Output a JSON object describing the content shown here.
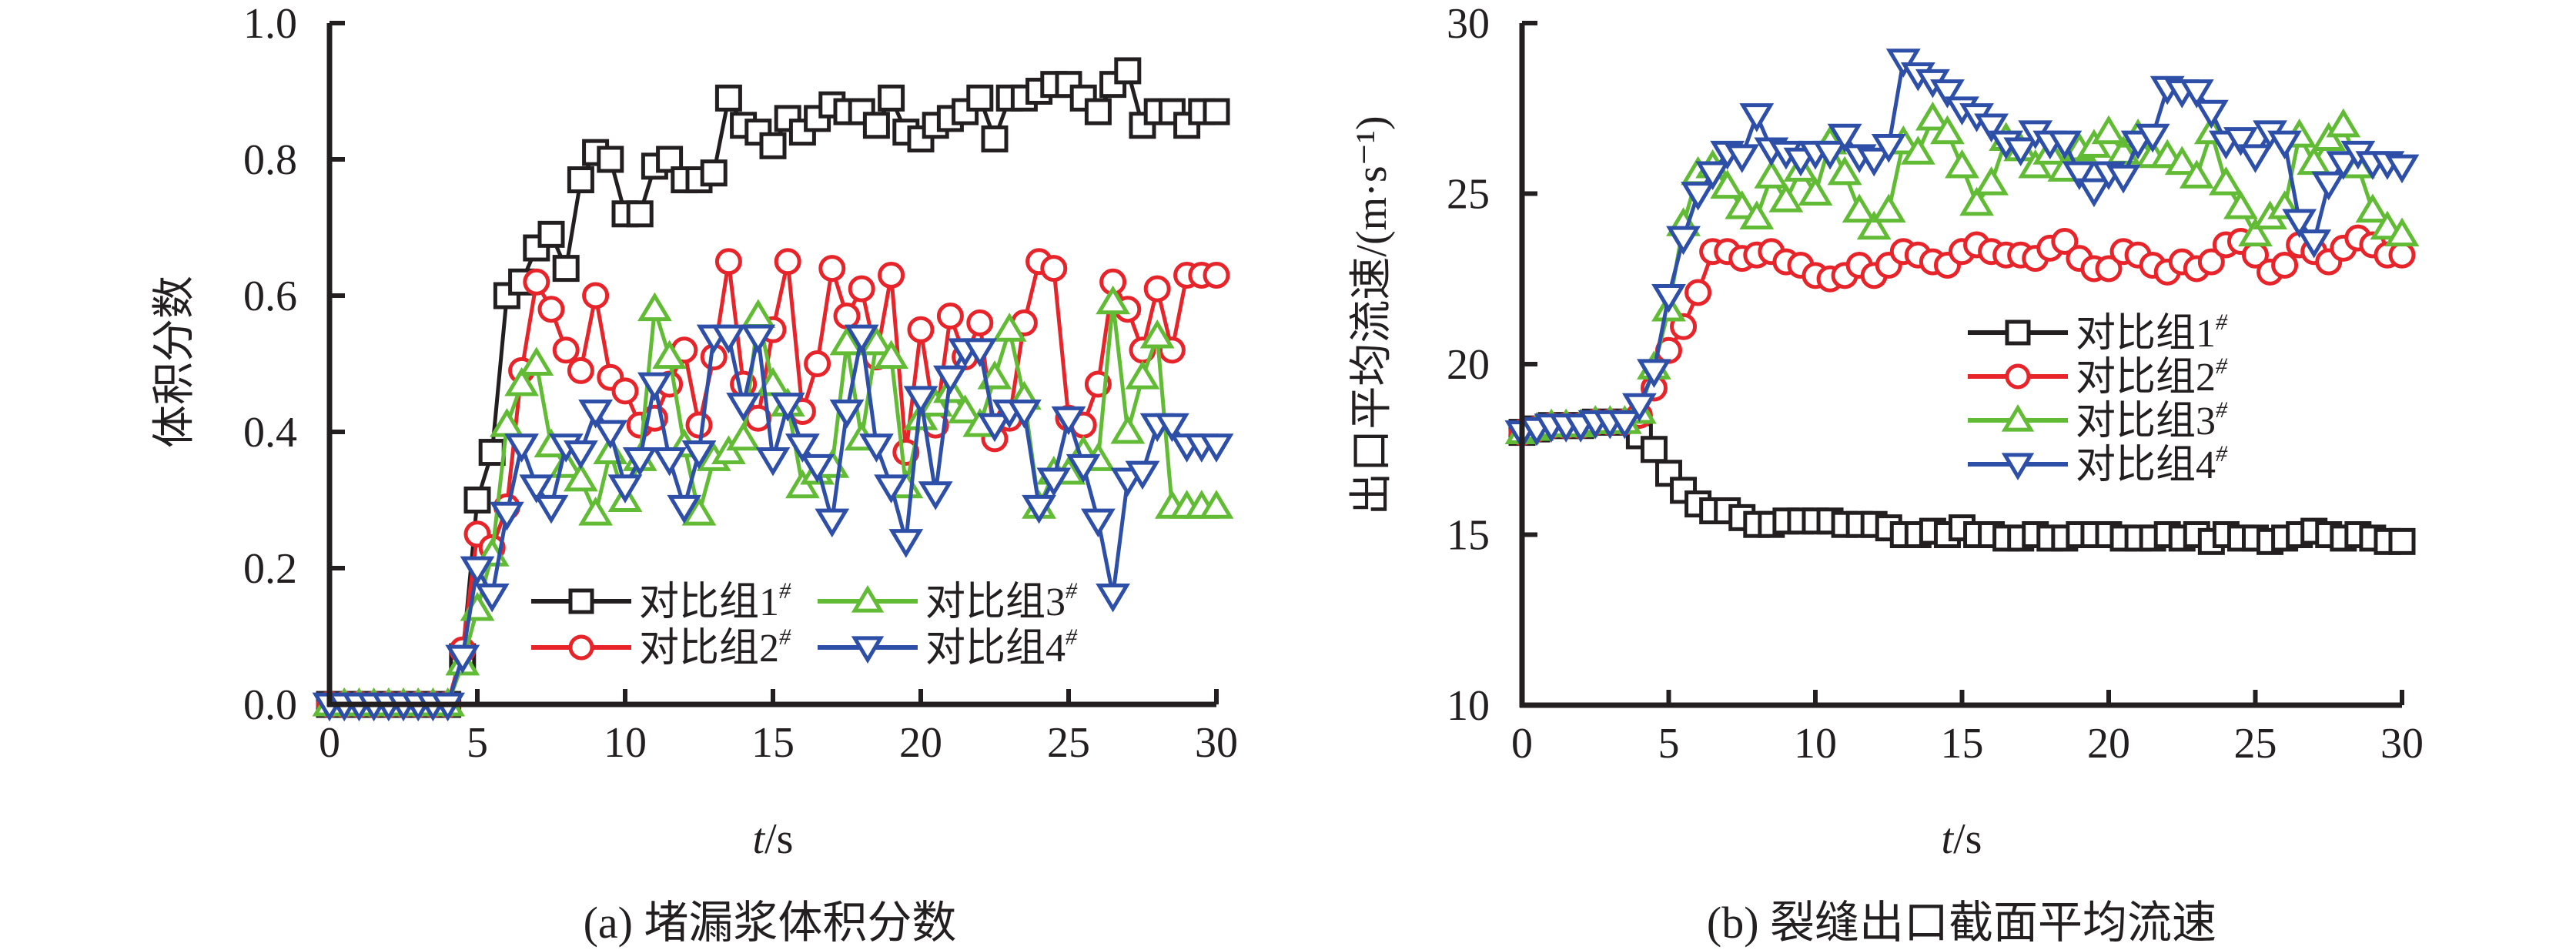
{
  "colors": {
    "axis": "#231f20",
    "series": [
      "#231f20",
      "#e8242b",
      "#62bb35",
      "#2e4fa7"
    ]
  },
  "chart_data": [
    {
      "type": "line",
      "panel": "a",
      "caption": "(a) 堵漏浆体积分数",
      "title": "",
      "xlabel_italic": "t",
      "xlabel_unit": "/s",
      "ylabel": "体积分数",
      "xlim": [
        0,
        30
      ],
      "ylim": [
        0,
        1.0
      ],
      "xticks": [
        0,
        5,
        10,
        15,
        20,
        25,
        30
      ],
      "yticks": [
        "0.0",
        "0.2",
        "0.4",
        "0.6",
        "0.8",
        "1.0"
      ],
      "ytick_values": [
        0,
        0.2,
        0.4,
        0.6,
        0.8,
        1.0
      ],
      "grid": false,
      "legend_placement": "lower-center-right (2 columns)",
      "x": [
        0,
        0.5,
        1,
        1.5,
        2,
        2.5,
        3,
        3.5,
        4,
        4.5,
        5,
        5.5,
        6,
        6.5,
        7,
        7.5,
        8,
        8.5,
        9,
        9.5,
        10,
        10.5,
        11,
        11.5,
        12,
        12.5,
        13,
        13.5,
        14,
        14.5,
        15,
        15.5,
        16,
        16.5,
        17,
        17.5,
        18,
        18.5,
        19,
        19.5,
        20,
        20.5,
        21,
        21.5,
        22,
        22.5,
        23,
        23.5,
        24,
        24.5,
        25,
        25.5,
        26,
        26.5,
        27,
        27.5,
        28,
        28.5,
        29,
        29.5,
        30
      ],
      "series": [
        {
          "name": "对比组1",
          "sup": "#",
          "marker": "square",
          "values": [
            0,
            0,
            0,
            0,
            0,
            0,
            0,
            0,
            0,
            0.07,
            0.3,
            0.37,
            0.6,
            0.62,
            0.67,
            0.69,
            0.64,
            0.77,
            0.81,
            0.8,
            0.72,
            0.72,
            0.79,
            0.8,
            0.77,
            0.77,
            0.78,
            0.89,
            0.85,
            0.84,
            0.82,
            0.86,
            0.84,
            0.86,
            0.88,
            0.87,
            0.87,
            0.85,
            0.89,
            0.84,
            0.83,
            0.85,
            0.86,
            0.87,
            0.89,
            0.83,
            0.89,
            0.89,
            0.9,
            0.91,
            0.91,
            0.89,
            0.87,
            0.91,
            0.93,
            0.85,
            0.87,
            0.87,
            0.85,
            0.87,
            0.87
          ]
        },
        {
          "name": "对比组2",
          "sup": "#",
          "marker": "circle",
          "values": [
            0,
            0,
            0,
            0,
            0,
            0,
            0,
            0,
            0,
            0.08,
            0.25,
            0.23,
            0.29,
            0.49,
            0.62,
            0.58,
            0.52,
            0.49,
            0.6,
            0.48,
            0.46,
            0.41,
            0.42,
            0.47,
            0.52,
            0.41,
            0.51,
            0.65,
            0.47,
            0.42,
            0.55,
            0.65,
            0.43,
            0.5,
            0.64,
            0.57,
            0.61,
            0.51,
            0.63,
            0.37,
            0.55,
            0.41,
            0.57,
            0.51,
            0.56,
            0.39,
            0.42,
            0.56,
            0.65,
            0.64,
            0.42,
            0.41,
            0.47,
            0.62,
            0.58,
            0.52,
            0.61,
            0.52,
            0.63,
            0.63,
            0.63
          ]
        },
        {
          "name": "对比组3",
          "sup": "#",
          "marker": "triangle-up",
          "values": [
            0,
            0,
            0,
            0,
            0,
            0,
            0,
            0,
            0,
            0.06,
            0.14,
            0.22,
            0.41,
            0.47,
            0.5,
            0.38,
            0.35,
            0.33,
            0.28,
            0.37,
            0.3,
            0.36,
            0.58,
            0.51,
            0.38,
            0.28,
            0.36,
            0.37,
            0.39,
            0.57,
            0.47,
            0.44,
            0.32,
            0.34,
            0.35,
            0.53,
            0.39,
            0.53,
            0.51,
            0.32,
            0.42,
            0.44,
            0.46,
            0.43,
            0.41,
            0.48,
            0.55,
            0.45,
            0.29,
            0.34,
            0.34,
            0.37,
            0.36,
            0.59,
            0.4,
            0.48,
            0.54,
            0.29,
            0.29,
            0.29,
            0.29
          ]
        },
        {
          "name": "对比组4",
          "sup": "#",
          "marker": "triangle-down",
          "values": [
            0,
            0,
            0,
            0,
            0,
            0,
            0,
            0,
            0,
            0.07,
            0.2,
            0.16,
            0.28,
            0.38,
            0.32,
            0.29,
            0.38,
            0.37,
            0.43,
            0.4,
            0.32,
            0.36,
            0.47,
            0.36,
            0.29,
            0.37,
            0.54,
            0.54,
            0.44,
            0.54,
            0.36,
            0.44,
            0.38,
            0.35,
            0.27,
            0.43,
            0.54,
            0.38,
            0.32,
            0.24,
            0.45,
            0.31,
            0.48,
            0.52,
            0.52,
            0.41,
            0.43,
            0.43,
            0.29,
            0.33,
            0.42,
            0.35,
            0.27,
            0.16,
            0.33,
            0.34,
            0.41,
            0.41,
            0.38,
            0.38,
            0.38
          ]
        }
      ]
    },
    {
      "type": "line",
      "panel": "b",
      "caption": "(b) 裂缝出口截面平均流速",
      "title": "",
      "xlabel_italic": "t",
      "xlabel_unit": "/s",
      "ylabel": "出口平均流速/(m·s⁻¹)",
      "xlim": [
        0,
        30
      ],
      "ylim": [
        10,
        30
      ],
      "xticks": [
        0,
        5,
        10,
        15,
        20,
        25,
        30
      ],
      "yticks": [
        "10",
        "15",
        "20",
        "25",
        "30"
      ],
      "ytick_values": [
        10,
        15,
        20,
        25,
        30
      ],
      "grid": false,
      "legend_placement": "center-right (1 column)",
      "x": [
        0,
        0.5,
        1,
        1.5,
        2,
        2.5,
        3,
        3.5,
        4,
        4.5,
        5,
        5.5,
        6,
        6.5,
        7,
        7.5,
        8,
        8.5,
        9,
        9.5,
        10,
        10.5,
        11,
        11.5,
        12,
        12.5,
        13,
        13.5,
        14,
        14.5,
        15,
        15.5,
        16,
        16.5,
        17,
        17.5,
        18,
        18.5,
        19,
        19.5,
        20,
        20.5,
        21,
        21.5,
        22,
        22.5,
        23,
        23.5,
        24,
        24.5,
        25,
        25.5,
        26,
        26.5,
        27,
        27.5,
        28,
        28.5,
        29,
        29.5,
        30
      ],
      "series": [
        {
          "name": "对比组1",
          "sup": "#",
          "marker": "square",
          "values": [
            18.0,
            18.1,
            18.2,
            18.2,
            18.2,
            18.3,
            18.3,
            18.3,
            17.9,
            17.5,
            16.8,
            16.3,
            15.9,
            15.7,
            15.7,
            15.5,
            15.3,
            15.3,
            15.4,
            15.4,
            15.4,
            15.4,
            15.3,
            15.3,
            15.3,
            15.2,
            15.0,
            15.0,
            15.1,
            15.0,
            15.2,
            15.0,
            15.0,
            14.9,
            14.9,
            15.0,
            14.9,
            14.9,
            15.0,
            15.0,
            15.0,
            14.9,
            14.9,
            14.9,
            15.0,
            14.9,
            15.0,
            14.8,
            15.0,
            14.9,
            14.9,
            14.8,
            14.9,
            15.0,
            15.1,
            15.0,
            14.9,
            15.0,
            14.9,
            14.8,
            14.8
          ]
        },
        {
          "name": "对比组2",
          "sup": "#",
          "marker": "circle",
          "values": [
            18.0,
            18.1,
            18.2,
            18.2,
            18.2,
            18.3,
            18.3,
            18.3,
            18.5,
            19.3,
            20.4,
            21.1,
            22.1,
            23.3,
            23.3,
            23.1,
            23.2,
            23.3,
            23.0,
            22.9,
            22.6,
            22.5,
            22.6,
            22.9,
            22.6,
            22.9,
            23.3,
            23.2,
            23.0,
            22.9,
            23.3,
            23.5,
            23.3,
            23.2,
            23.2,
            23.1,
            23.4,
            23.6,
            23.1,
            22.8,
            22.8,
            23.3,
            23.2,
            22.9,
            22.7,
            23.0,
            22.8,
            23.0,
            23.5,
            23.6,
            23.2,
            22.7,
            22.9,
            23.5,
            23.3,
            23.0,
            23.4,
            23.7,
            23.5,
            23.2,
            23.2
          ]
        },
        {
          "name": "对比组3",
          "sup": "#",
          "marker": "triangle-up",
          "values": [
            18.0,
            18.1,
            18.2,
            18.2,
            18.2,
            18.3,
            18.3,
            18.3,
            18.6,
            19.9,
            21.6,
            24.1,
            25.6,
            25.8,
            25.2,
            24.6,
            24.3,
            25.5,
            24.8,
            25.7,
            25.0,
            26.5,
            25.6,
            24.5,
            24.0,
            24.5,
            26.5,
            26.2,
            27.2,
            26.8,
            25.8,
            24.7,
            25.3,
            26.6,
            26.3,
            25.8,
            26.2,
            25.7,
            26.3,
            26.4,
            26.8,
            26.2,
            26.7,
            26.1,
            26.1,
            25.9,
            25.5,
            26.8,
            25.3,
            24.6,
            23.8,
            24.3,
            24.6,
            26.7,
            25.9,
            26.6,
            27.0,
            25.8,
            24.5,
            24.0,
            23.8
          ]
        },
        {
          "name": "对比组4",
          "sup": "#",
          "marker": "triangle-down",
          "values": [
            18.0,
            18.1,
            18.2,
            18.2,
            18.2,
            18.3,
            18.3,
            18.3,
            18.8,
            19.8,
            22.0,
            23.7,
            25.0,
            25.6,
            26.2,
            26.1,
            27.3,
            26.3,
            26.2,
            26.0,
            26.2,
            26.2,
            26.7,
            26.1,
            26.0,
            26.4,
            28.9,
            28.5,
            28.3,
            28.0,
            27.5,
            27.3,
            27.0,
            26.5,
            26.3,
            26.8,
            26.5,
            26.5,
            25.6,
            25.1,
            25.6,
            25.5,
            26.5,
            26.7,
            28.1,
            28.0,
            28.0,
            27.4,
            26.5,
            26.6,
            26.1,
            26.8,
            26.5,
            24.2,
            23.6,
            25.3,
            25.9,
            26.2,
            25.9,
            25.9,
            25.8
          ]
        }
      ]
    }
  ]
}
